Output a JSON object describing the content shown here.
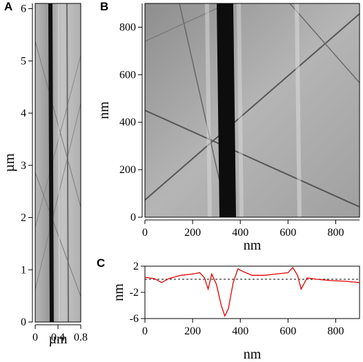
{
  "panels": {
    "A": {
      "letter": "A"
    },
    "B": {
      "letter": "B"
    },
    "C": {
      "letter": "C"
    }
  },
  "chart_data": [
    {
      "panel": "A",
      "type": "image",
      "xlabel": "µm",
      "ylabel": "µm",
      "xlim": [
        0,
        0.8
      ],
      "ylim": [
        0,
        6.1
      ],
      "xticks": [
        "0",
        "0.4",
        "0.8"
      ],
      "yticks": [
        "0",
        "1",
        "2",
        "3",
        "4",
        "5",
        "6"
      ]
    },
    {
      "panel": "B",
      "type": "image",
      "xlabel": "nm",
      "ylabel": "nm",
      "xlim": [
        0,
        900
      ],
      "ylim": [
        0,
        900
      ],
      "xticks": [
        "0",
        "200",
        "400",
        "600",
        "800"
      ],
      "yticks": [
        "0",
        "200",
        "400",
        "600",
        "800"
      ]
    },
    {
      "panel": "C",
      "type": "line",
      "xlabel": "nm",
      "ylabel": "nm",
      "xlim": [
        0,
        900
      ],
      "ylim": [
        -6,
        2
      ],
      "xticks": [
        "0",
        "200",
        "400",
        "600",
        "800"
      ],
      "yticks": [
        "2",
        "-2",
        "-6"
      ],
      "reference_line": 0,
      "series": [
        {
          "color": "#e00000",
          "x": [
            0,
            40,
            70,
            100,
            150,
            200,
            230,
            250,
            265,
            280,
            300,
            320,
            335,
            350,
            370,
            390,
            410,
            450,
            500,
            550,
            600,
            620,
            640,
            655,
            680,
            720,
            780,
            840,
            900
          ],
          "y": [
            0.3,
            0.1,
            -0.5,
            0.1,
            0.6,
            0.8,
            1.0,
            0.2,
            -1.5,
            0.8,
            -0.8,
            -4.0,
            -5.6,
            -4.5,
            -0.5,
            1.6,
            1.2,
            0.6,
            0.6,
            0.8,
            1.0,
            1.8,
            0.6,
            -1.5,
            0.2,
            0.0,
            -0.2,
            -0.3,
            -0.5
          ]
        }
      ]
    }
  ]
}
